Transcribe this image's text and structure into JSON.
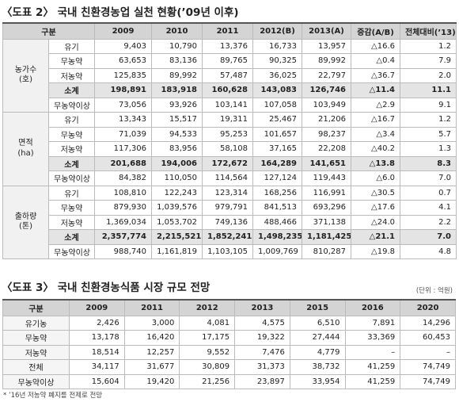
{
  "table1": {
    "title": "〈도표 2〉 국내 친환경농업 실천 현황(’09년 이후)",
    "header": [
      "구분",
      "2009",
      "2010",
      "2011",
      "2012(B)",
      "2013(A)",
      "증감(A/B)",
      "전체대비(’13)"
    ],
    "groups": [
      {
        "label": "농가수\n(호)",
        "rows": [
          [
            "유기",
            "9,403",
            "10,790",
            "13,376",
            "16,733",
            "13,957",
            "△16.6",
            "1.2"
          ],
          [
            "무농약",
            "63,653",
            "83,136",
            "89,765",
            "90,325",
            "89,992",
            "△0.4",
            "7.9"
          ],
          [
            "저농약",
            "125,835",
            "89,992",
            "57,487",
            "36,025",
            "22,797",
            "△36.7",
            "2.0"
          ],
          [
            "소계",
            "198,891",
            "183,918",
            "160,628",
            "143,083",
            "126,746",
            "△11.4",
            "11.1"
          ],
          [
            "무농약이상",
            "73,056",
            "93,926",
            "103,141",
            "107,058",
            "103,949",
            "△2.9",
            "9.1"
          ]
        ]
      },
      {
        "label": "면적\n(ha)",
        "rows": [
          [
            "유기",
            "13,343",
            "15,517",
            "19,311",
            "25,467",
            "21,206",
            "△16.7",
            "1.2"
          ],
          [
            "무농약",
            "71,039",
            "94,533",
            "95,253",
            "101,657",
            "98,237",
            "△3.4",
            "5.7"
          ],
          [
            "저농약",
            "117,306",
            "83,956",
            "58,108",
            "37,165",
            "22,208",
            "△40.2",
            "1.3"
          ],
          [
            "소계",
            "201,688",
            "194,006",
            "172,672",
            "164,289",
            "141,651",
            "△13.8",
            "8.3"
          ],
          [
            "무농약이상",
            "84,382",
            "110,050",
            "114,564",
            "127,124",
            "119,443",
            "△6.0",
            "7.0"
          ]
        ]
      },
      {
        "label": "출하량\n(톤)",
        "rows": [
          [
            "유기",
            "108,810",
            "122,243",
            "123,314",
            "168,256",
            "116,991",
            "△30.5",
            "0.7"
          ],
          [
            "무농약",
            "879,930",
            "1,039,576",
            "979,791",
            "841,513",
            "693,296",
            "△17.6",
            "4.1"
          ],
          [
            "저농약",
            "1,369,034",
            "1,053,702",
            "749,136",
            "488,466",
            "371,138",
            "△24.0",
            "2.2"
          ],
          [
            "소계",
            "2,357,774",
            "2,215,521",
            "1,852,241",
            "1,498,235",
            "1,181,425",
            "△21.1",
            "7.0"
          ],
          [
            "무농약이상",
            "988,740",
            "1,161,819",
            "1,103,105",
            "1,009,769",
            "810,287",
            "△19.8",
            "4.8"
          ]
        ]
      }
    ]
  },
  "table2": {
    "title": "〈도표 3〉 국내 친환경농식품 시장 규모 전망",
    "unit": "(단위 : 억원)",
    "header": [
      "구분",
      "2009",
      "2011",
      "2012",
      "2013",
      "2015",
      "2016",
      "2020"
    ],
    "rows": [
      [
        "유기농",
        "2,426",
        "3,000",
        "4,081",
        "4,575",
        "6,510",
        "7,891",
        "14,296"
      ],
      [
        "무농약",
        "13,178",
        "16,420",
        "17,175",
        "19,322",
        "27,444",
        "33,369",
        "60,453"
      ],
      [
        "저농약",
        "18,514",
        "12,257",
        "9,552",
        "7,476",
        "4,779",
        "–",
        "–"
      ],
      [
        "전체",
        "34,117",
        "31,677",
        "30,809",
        "31,373",
        "38,732",
        "41,259",
        "74,749"
      ],
      [
        "무농약이상",
        "15,604",
        "19,420",
        "21,256",
        "23,897",
        "33,954",
        "41,259",
        "74,749"
      ]
    ],
    "footnote": "* ’16년 저농약 폐지를 전제로 전망"
  }
}
